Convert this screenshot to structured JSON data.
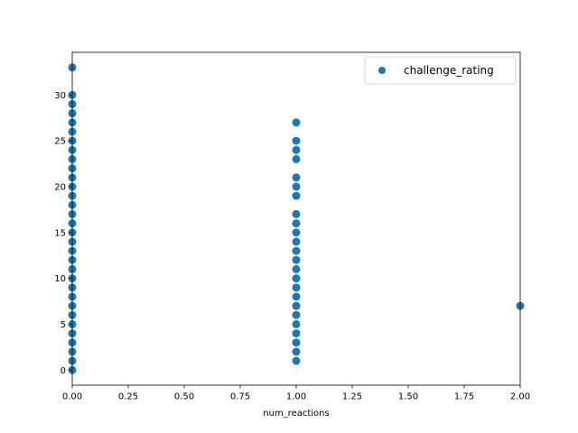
{
  "chart_data": {
    "type": "scatter",
    "title": "",
    "xlabel": "num_reactions",
    "ylabel": "",
    "xlim": [
      0,
      2
    ],
    "ylim": [
      -1.65,
      34.65
    ],
    "x_ticks": [
      "0.00",
      "0.25",
      "0.50",
      "0.75",
      "1.00",
      "1.25",
      "1.50",
      "1.75",
      "2.00"
    ],
    "y_ticks": [
      "0",
      "5",
      "10",
      "15",
      "20",
      "25",
      "30"
    ],
    "grid": false,
    "legend": {
      "placement": "top-right",
      "entries": [
        "challenge_rating"
      ]
    },
    "series": [
      {
        "name": "challenge_rating",
        "color": "#1f77b4",
        "points": [
          [
            0,
            0
          ],
          [
            0,
            1
          ],
          [
            0,
            2
          ],
          [
            0,
            3
          ],
          [
            0,
            4
          ],
          [
            0,
            5
          ],
          [
            0,
            6
          ],
          [
            0,
            7
          ],
          [
            0,
            8
          ],
          [
            0,
            9
          ],
          [
            0,
            10
          ],
          [
            0,
            11
          ],
          [
            0,
            12
          ],
          [
            0,
            13
          ],
          [
            0,
            14
          ],
          [
            0,
            15
          ],
          [
            0,
            16
          ],
          [
            0,
            17
          ],
          [
            0,
            18
          ],
          [
            0,
            19
          ],
          [
            0,
            20
          ],
          [
            0,
            21
          ],
          [
            0,
            22
          ],
          [
            0,
            23
          ],
          [
            0,
            24
          ],
          [
            0,
            25
          ],
          [
            0,
            26
          ],
          [
            0,
            27
          ],
          [
            0,
            28
          ],
          [
            0,
            29
          ],
          [
            0,
            30
          ],
          [
            0,
            33
          ],
          [
            1,
            1
          ],
          [
            1,
            2
          ],
          [
            1,
            3
          ],
          [
            1,
            4
          ],
          [
            1,
            5
          ],
          [
            1,
            6
          ],
          [
            1,
            7
          ],
          [
            1,
            8
          ],
          [
            1,
            9
          ],
          [
            1,
            10
          ],
          [
            1,
            11
          ],
          [
            1,
            12
          ],
          [
            1,
            13
          ],
          [
            1,
            14
          ],
          [
            1,
            15
          ],
          [
            1,
            16
          ],
          [
            1,
            17
          ],
          [
            1,
            19
          ],
          [
            1,
            20
          ],
          [
            1,
            21
          ],
          [
            1,
            23
          ],
          [
            1,
            24
          ],
          [
            1,
            25
          ],
          [
            1,
            27
          ],
          [
            2,
            7
          ]
        ]
      }
    ]
  }
}
